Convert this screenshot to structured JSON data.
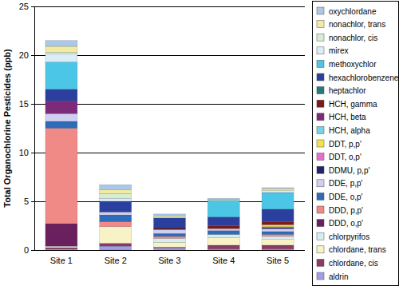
{
  "chart_data": {
    "type": "bar",
    "stacked": true,
    "grid": true,
    "legend": "right",
    "y_label": "Total Organochlorine Pesticides (ppb)",
    "categories": [
      "Site 1",
      "Site 2",
      "Site 3",
      "Site 4",
      "Site 5"
    ],
    "ylim": [
      0,
      25
    ],
    "yticks": [
      0,
      5,
      10,
      15,
      20,
      25
    ],
    "series": [
      {
        "name": "aldrin",
        "color": "#9f9fe8",
        "values": [
          0.1,
          0.4,
          0.2,
          0.1,
          0.1
        ]
      },
      {
        "name": "chlordane, cis",
        "color": "#8e3a66",
        "values": [
          0.15,
          0.3,
          0.1,
          0.4,
          0.4
        ]
      },
      {
        "name": "chlordane, trans",
        "color": "#f7f3c6",
        "values": [
          0.1,
          1.7,
          0.5,
          0.8,
          0.6
        ]
      },
      {
        "name": "chlorpyrifos",
        "color": "#d6eef2",
        "values": [
          0.05,
          0,
          0.4,
          0.3,
          0.3
        ]
      },
      {
        "name": "DDD, o,p'",
        "color": "#6a1f5e",
        "values": [
          2.3,
          0,
          0,
          0,
          0
        ]
      },
      {
        "name": "DDD, p,p'",
        "color": "#f08a86",
        "values": [
          9.8,
          0.5,
          0.2,
          0,
          0.2
        ]
      },
      {
        "name": "DDE, o,p'",
        "color": "#2e6bb8",
        "values": [
          0.7,
          0.7,
          0.3,
          0.4,
          0.3
        ]
      },
      {
        "name": "DDE, p,p'",
        "color": "#cfcff0",
        "values": [
          0.8,
          0.3,
          0.4,
          0.2,
          0.3
        ]
      },
      {
        "name": "DDMU, p,p'",
        "color": "#22236e",
        "values": [
          0,
          0,
          0.1,
          0,
          0.1
        ]
      },
      {
        "name": "DDT, o,p'",
        "color": "#e56fcb",
        "values": [
          0,
          0,
          0,
          0,
          0.1
        ]
      },
      {
        "name": "DDT, p,p'",
        "color": "#f2e24a",
        "values": [
          0,
          0,
          0,
          0,
          0.2
        ]
      },
      {
        "name": "HCH, alpha",
        "color": "#74d3e6",
        "values": [
          0,
          0,
          0,
          0,
          0
        ]
      },
      {
        "name": "HCH, beta",
        "color": "#7d2a7a",
        "values": [
          1.3,
          0,
          0,
          0,
          0
        ]
      },
      {
        "name": "HCH, gamma",
        "color": "#7a1a1a",
        "values": [
          0,
          0,
          0.1,
          0.3,
          0.3
        ]
      },
      {
        "name": "heptachlor",
        "color": "#1f7d7a",
        "values": [
          0,
          0,
          0,
          0,
          0
        ]
      },
      {
        "name": "hexachlorobenzene",
        "color": "#2a3f9e",
        "values": [
          1.2,
          1.1,
          1.0,
          0.9,
          1.3
        ]
      },
      {
        "name": "methoxychlor",
        "color": "#4cc6e6",
        "values": [
          2.8,
          0,
          0,
          1.7,
          1.7
        ]
      },
      {
        "name": "mirex",
        "color": "#dcedf8",
        "values": [
          0.8,
          0.3,
          0,
          0,
          0.2
        ]
      },
      {
        "name": "nonachlor, cis",
        "color": "#d7ecd2",
        "values": [
          0.2,
          0.5,
          0,
          0,
          0
        ]
      },
      {
        "name": "nonachlor, trans",
        "color": "#f1eaa0",
        "values": [
          0.6,
          0.4,
          0.2,
          0.1,
          0.2
        ]
      },
      {
        "name": "oxychlordane",
        "color": "#a9c8ea",
        "values": [
          0.6,
          0.5,
          0.2,
          0.1,
          0.1
        ]
      }
    ]
  }
}
